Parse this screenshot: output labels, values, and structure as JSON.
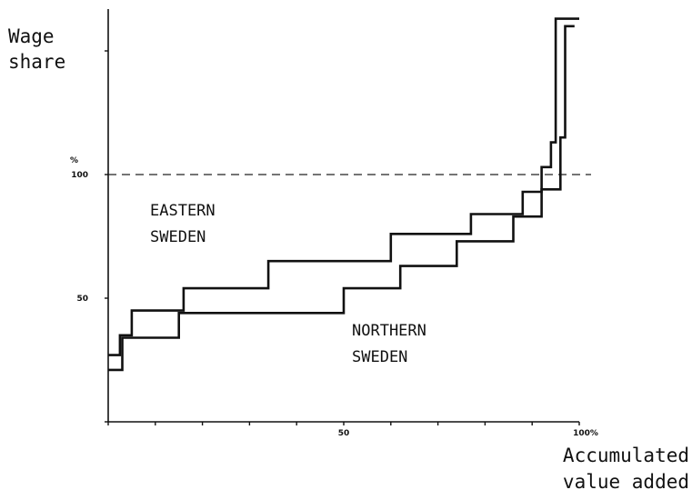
{
  "chart_data": {
    "type": "line",
    "step": true,
    "ylabel": [
      "Wage",
      "share"
    ],
    "xlabel": [
      "Accumulated",
      "value added"
    ],
    "unit": "%",
    "xlim": [
      0,
      100
    ],
    "ylim": [
      0,
      165
    ],
    "x_ticks": [
      0,
      10,
      20,
      30,
      40,
      50,
      60,
      70,
      80,
      90,
      100
    ],
    "x_tick_labels": [
      {
        "value": 50,
        "label": "50"
      },
      {
        "value": 100,
        "label": "100%"
      }
    ],
    "y_ticks": [
      0,
      50,
      100,
      150
    ],
    "y_tick_labels": [
      {
        "value": 50,
        "label": "50"
      },
      {
        "value": 100,
        "label": "100"
      }
    ],
    "reference_line": {
      "y": 100,
      "style": "dashed"
    },
    "series": [
      {
        "name": "EASTERN SWEDEN",
        "label_lines": [
          "EASTERN",
          "SWEDEN"
        ],
        "points": [
          [
            0,
            27
          ],
          [
            2.5,
            27
          ],
          [
            2.5,
            35
          ],
          [
            5,
            35
          ],
          [
            5,
            45
          ],
          [
            16,
            45
          ],
          [
            16,
            54
          ],
          [
            34,
            54
          ],
          [
            34,
            65
          ],
          [
            60,
            65
          ],
          [
            60,
            76
          ],
          [
            77,
            76
          ],
          [
            77,
            84
          ],
          [
            88,
            84
          ],
          [
            88,
            93
          ],
          [
            92,
            93
          ],
          [
            92,
            103
          ],
          [
            94,
            103
          ],
          [
            94,
            113
          ],
          [
            95,
            113
          ],
          [
            95,
            163
          ],
          [
            100,
            163
          ]
        ]
      },
      {
        "name": "NORTHERN SWEDEN",
        "label_lines": [
          "NORTHERN",
          "SWEDEN"
        ],
        "points": [
          [
            0,
            21
          ],
          [
            3,
            21
          ],
          [
            3,
            34
          ],
          [
            15,
            34
          ],
          [
            15,
            44
          ],
          [
            50,
            44
          ],
          [
            50,
            54
          ],
          [
            62,
            54
          ],
          [
            62,
            63
          ],
          [
            74,
            63
          ],
          [
            74,
            73
          ],
          [
            86,
            73
          ],
          [
            86,
            83
          ],
          [
            92,
            83
          ],
          [
            92,
            94
          ],
          [
            96,
            94
          ],
          [
            96,
            115
          ],
          [
            97,
            115
          ],
          [
            97,
            160
          ],
          [
            99,
            160
          ]
        ]
      }
    ]
  }
}
